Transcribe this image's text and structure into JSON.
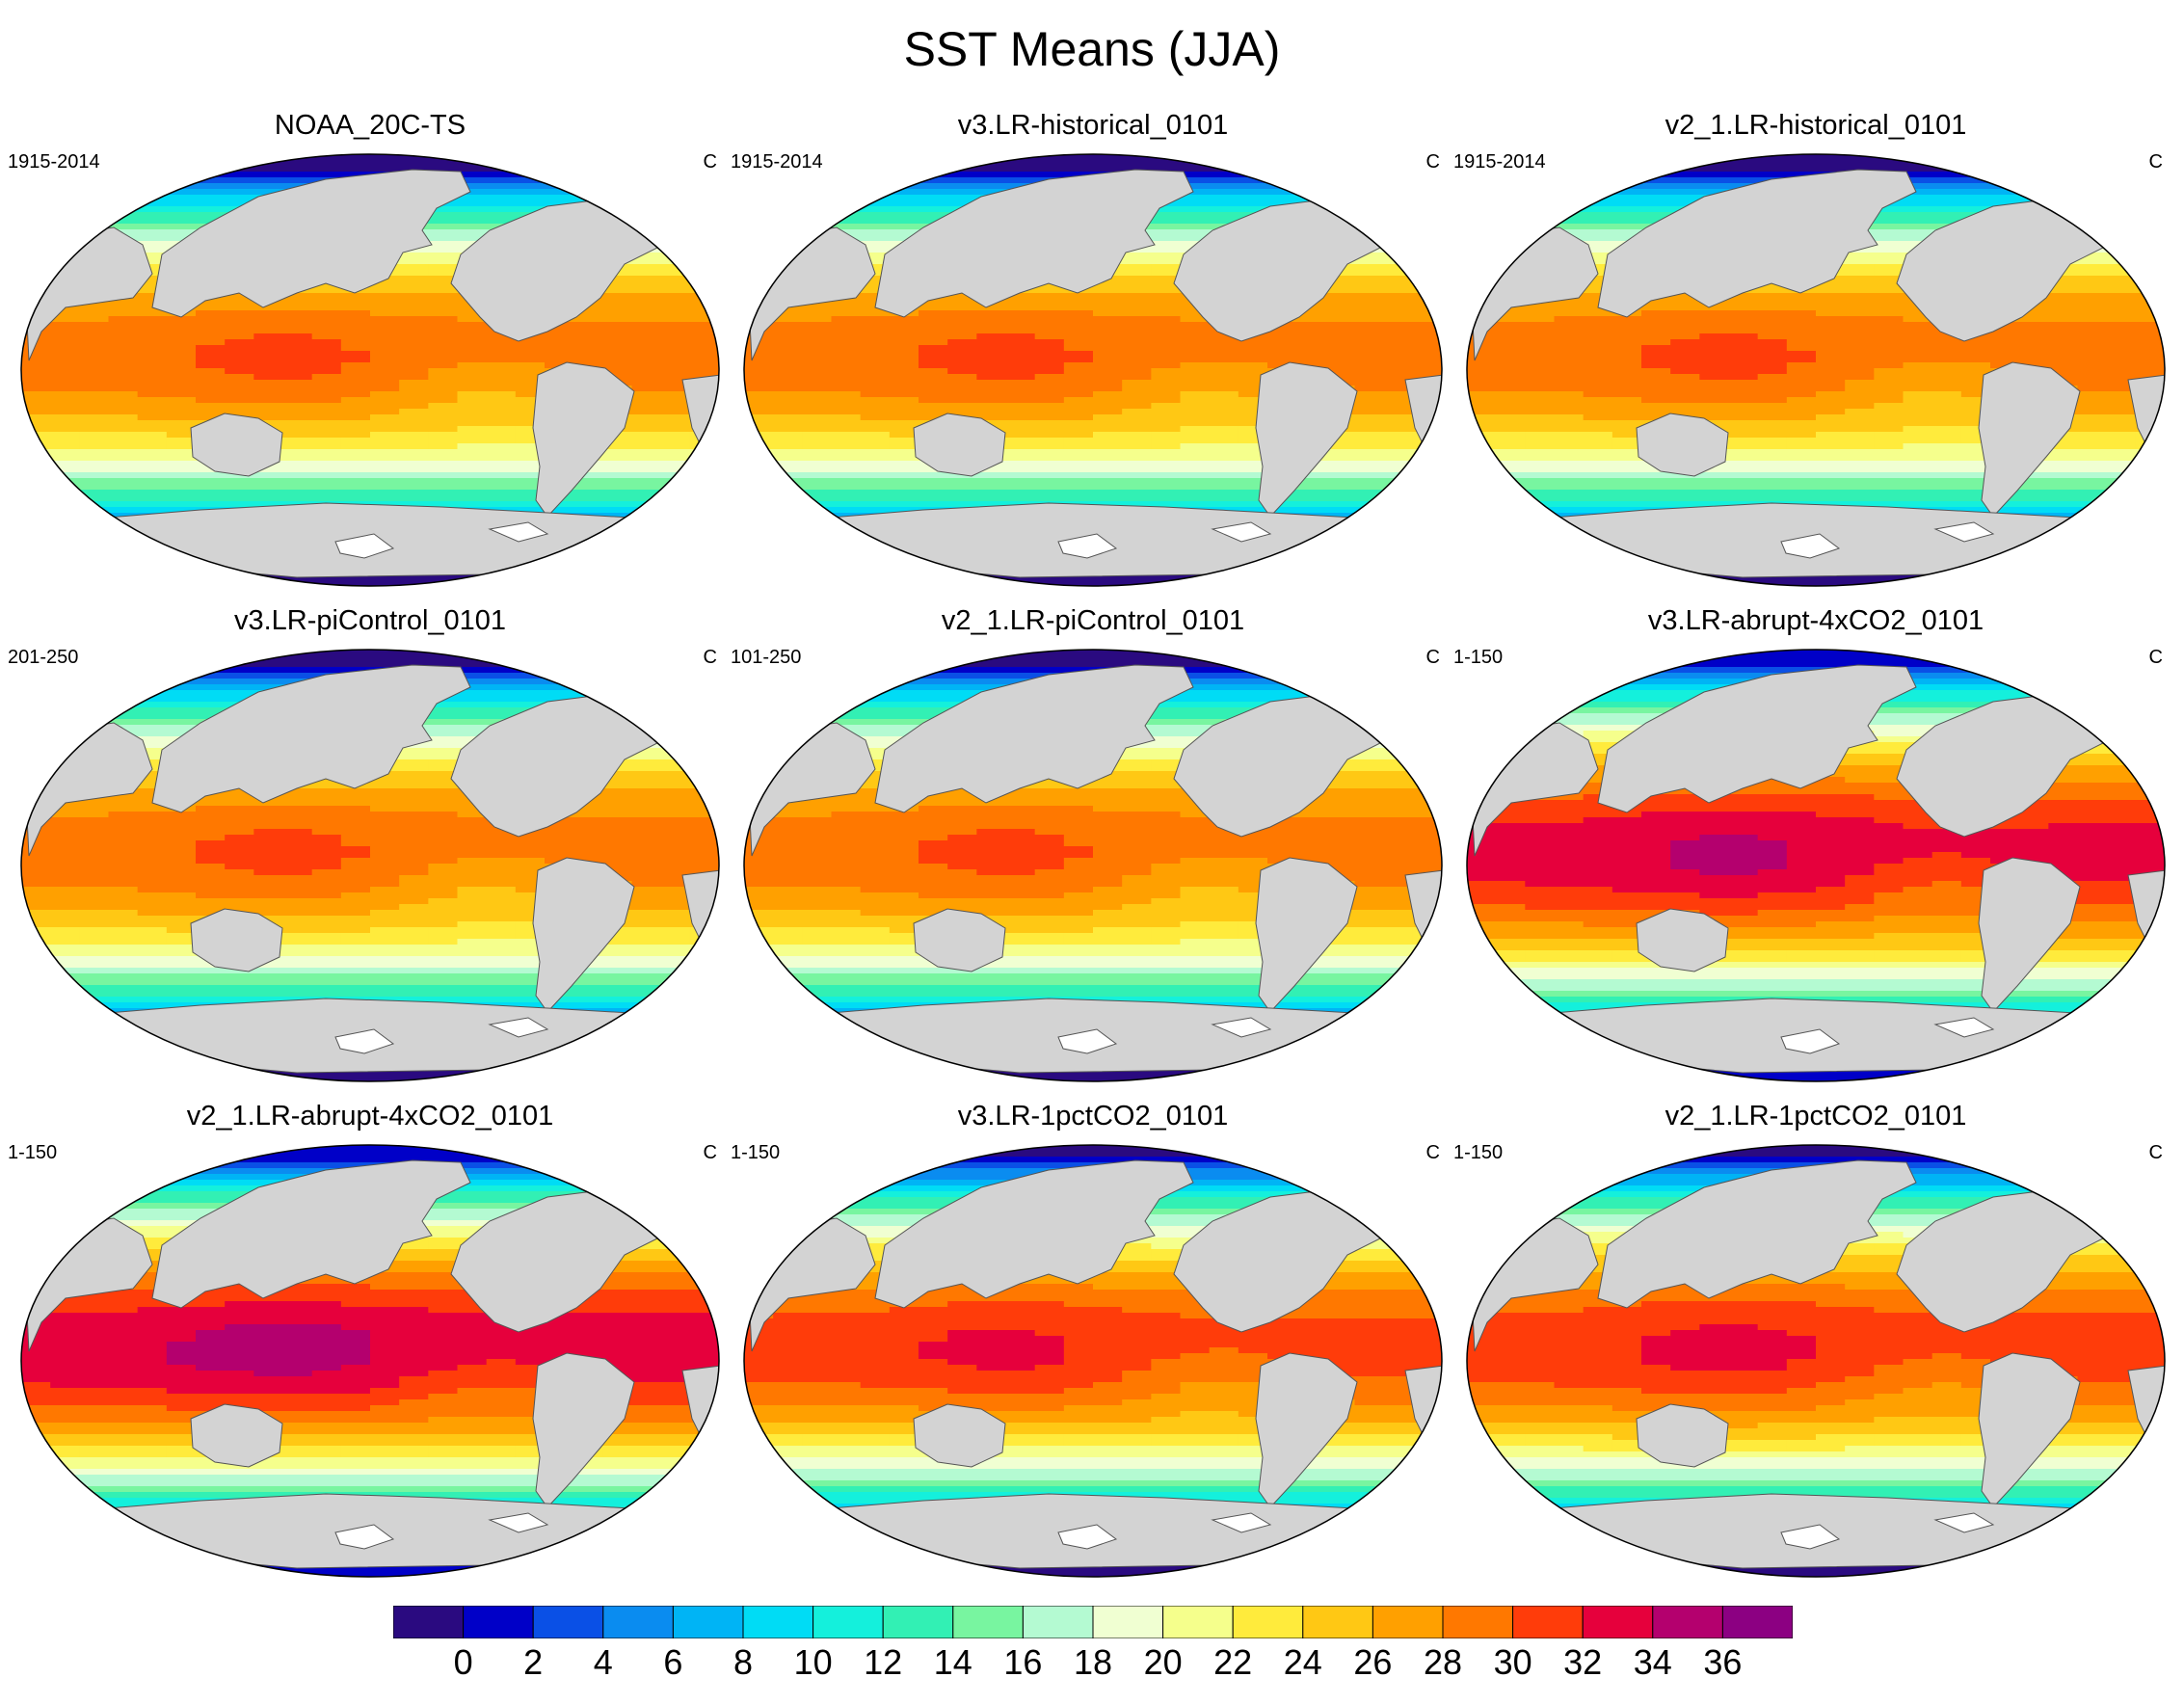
{
  "figure": {
    "title": "SST Means (JJA)"
  },
  "panels": [
    {
      "title": "NOAA_20C-TS",
      "period": "1915-2014",
      "unit": "C",
      "warm": 0.0
    },
    {
      "title": "v3.LR-historical_0101",
      "period": "1915-2014",
      "unit": "C",
      "warm": 0.0
    },
    {
      "title": "v2_1.LR-historical_0101",
      "period": "1915-2014",
      "unit": "C",
      "warm": 0.0
    },
    {
      "title": "v3.LR-piControl_0101",
      "period": "201-250",
      "unit": "C",
      "warm": 0.0
    },
    {
      "title": "v2_1.LR-piControl_0101",
      "period": "101-250",
      "unit": "C",
      "warm": 0.0
    },
    {
      "title": "v3.LR-abrupt-4xCO2_0101",
      "period": "1-150",
      "unit": "C",
      "warm": 4.0
    },
    {
      "title": "v2_1.LR-abrupt-4xCO2_0101",
      "period": "1-150",
      "unit": "C",
      "warm": 4.5
    },
    {
      "title": "v3.LR-1pctCO2_0101",
      "period": "1-150",
      "unit": "C",
      "warm": 2.0
    },
    {
      "title": "v2_1.LR-1pctCO2_0101",
      "period": "1-150",
      "unit": "C",
      "warm": 2.2
    }
  ],
  "colorbar": {
    "labels": [
      "0",
      "2",
      "4",
      "6",
      "8",
      "10",
      "12",
      "14",
      "16",
      "18",
      "20",
      "22",
      "24",
      "26",
      "28",
      "30",
      "32",
      "34",
      "36"
    ],
    "colors": [
      "#2a0a80",
      "#0000c8",
      "#0a50e6",
      "#0a8cf0",
      "#00b4f5",
      "#00dcf5",
      "#14f0dc",
      "#32f0b4",
      "#78f5a0",
      "#b4fad2",
      "#f0ffd2",
      "#f5ff8c",
      "#ffeb3c",
      "#ffc814",
      "#ffa000",
      "#ff7800",
      "#ff3c0a",
      "#e6003c",
      "#b4006e",
      "#8c0082"
    ]
  },
  "land_color": "#d3d3d3",
  "ice_color": "#ffffff"
}
